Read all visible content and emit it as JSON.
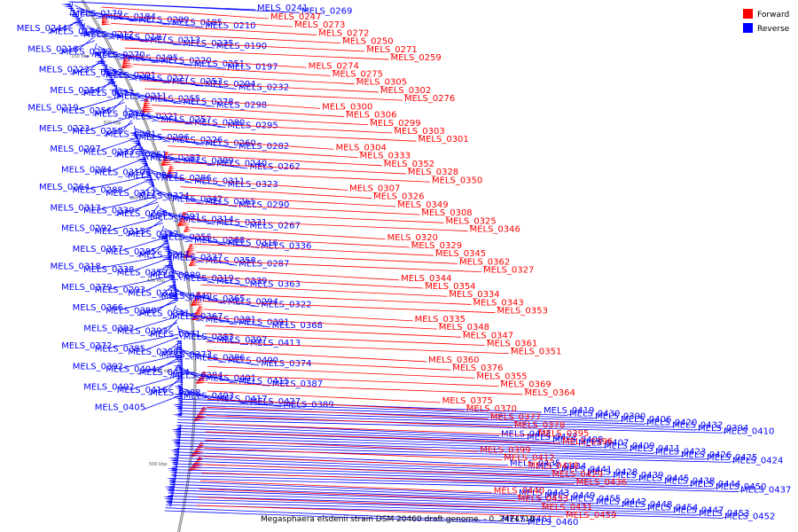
{
  "caption": "Megasphaera elsdenii strain DSM 20460 draft genome. - 0..2474718",
  "legend": [
    {
      "label": "Forward",
      "color": "#ff0000"
    },
    {
      "label": "Reverse",
      "color": "#0000ff"
    }
  ],
  "ticks": [
    "250 kbp",
    "300 kbp",
    "350 kbp",
    "400 kbp",
    "450 kbp",
    "500 kbp"
  ],
  "colors": {
    "forward": "#ff0000",
    "reverse": "#0000ff",
    "backbone": "#888888"
  },
  "reverse_labels": [
    "MELS_0241",
    "MELS_0269",
    "MELS_0179",
    "MELS_0184",
    "MELS_0209",
    "MELS_0185",
    "MELS_0210",
    "MELS_0244",
    "MELS_0186",
    "MELS_0212",
    "MELS_0187",
    "MELS_0213",
    "MELS_0235",
    "MELS_0190",
    "MELS_0218",
    "MELS_0242",
    "MELS_0270",
    "MELS_0195",
    "MELS_0220",
    "MELS_0251",
    "MELS_0197",
    "MELS_0222",
    "MELS_0252",
    "MELS_0201",
    "MELS_0227",
    "MELS_0253",
    "MELS_0204",
    "MELS_0232",
    "MELS_0254",
    "MELS_0277",
    "MELS_0211",
    "MELS_0255",
    "MELS_0278",
    "MELS_0298",
    "MELS_0219",
    "MELS_0256",
    "MELS_0279",
    "MELS_0221",
    "MELS_0257",
    "MELS_0280",
    "MELS_0295",
    "MELS_0223",
    "MELS_0258",
    "MELS_0281",
    "MELS_0296",
    "MELS_0226",
    "MELS_0260",
    "MELS_0282",
    "MELS_0297",
    "MELS_0233",
    "MELS_0261",
    "MELS_0283",
    "MELS_0309",
    "MELS_0240",
    "MELS_0262",
    "MELS_0284",
    "MELS_0310",
    "MELS_0263",
    "MELS_0286",
    "MELS_0311",
    "MELS_0323",
    "MELS_0264",
    "MELS_0288",
    "MELS_0312",
    "MELS_0324",
    "MELS_0342",
    "MELS_0265",
    "MELS_0290",
    "MELS_0313",
    "MELS_0330",
    "MELS_0266",
    "MELS_0291",
    "MELS_0314",
    "MELS_0331",
    "MELS_0267",
    "MELS_0292",
    "MELS_0315",
    "MELS_0332",
    "MELS_0356",
    "MELS_0268",
    "MELS_0316",
    "MELS_0336",
    "MELS_0357",
    "MELS_0285",
    "MELS_0317",
    "MELS_0337",
    "MELS_0358",
    "MELS_0287",
    "MELS_0318",
    "MELS_0338",
    "MELS_0359",
    "MELS_0289",
    "MELS_0319",
    "MELS_0339",
    "MELS_0363",
    "MELS_0379",
    "MELS_0293",
    "MELS_0321",
    "MELS_0340",
    "MELS_0365",
    "MELS_0294",
    "MELS_0322",
    "MELS_0366",
    "MELS_0380",
    "MELS_0341",
    "MELS_0367",
    "MELS_0381",
    "MELS_0391",
    "MELS_0368",
    "MELS_0382",
    "MELS_0393",
    "MELS_0371",
    "MELS_0383",
    "MELS_0397",
    "MELS_0413",
    "MELS_0372",
    "MELS_0385",
    "MELS_0398",
    "MELS_0373",
    "MELS_0386",
    "MELS_0400",
    "MELS_0374",
    "MELS_0392",
    "MELS_0404",
    "MELS_0414",
    "MELS_0384",
    "MELS_0401",
    "MELS_0415",
    "MELS_0387",
    "MELS_0402",
    "MELS_0416",
    "MELS_0388",
    "MELS_0403",
    "MELS_0417",
    "MELS_0427",
    "MELS_0389",
    "MELS_0405",
    "MELS_0419",
    "MELS_0430",
    "MELS_0390",
    "MELS_0406",
    "MELS_0420",
    "MELS_0432",
    "MELS_0394",
    "MELS_0410",
    "MELS_0421",
    "MELS_0422",
    "MELS_0408",
    "MELS_0407",
    "MELS_0409",
    "MELS_0411",
    "MELS_0423",
    "MELS_0426",
    "MELS_0425",
    "MELS_0424",
    "MELS_0435",
    "MELS_0434",
    "MELS_0441",
    "MELS_0428",
    "MELS_0439",
    "MELS_0445",
    "MELS_0438",
    "MELS_0444",
    "MELS_0450",
    "MELS_0437",
    "MELS_0443",
    "MELS_0449",
    "MELS_0455",
    "MELS_0442",
    "MELS_0448",
    "MELS_0454",
    "MELS_0447",
    "MELS_0453",
    "MELS_0452",
    "MELS_0461",
    "MELS_0460"
  ],
  "forward_labels": [
    "MELS_0247",
    "MELS_0273",
    "MELS_0272",
    "MELS_0250",
    "MELS_0271",
    "MELS_0259",
    "MELS_0274",
    "MELS_0275",
    "MELS_0305",
    "MELS_0302",
    "MELS_0276",
    "MELS_0300",
    "MELS_0306",
    "MELS_0299",
    "MELS_0303",
    "MELS_0301",
    "MELS_0304",
    "MELS_0333",
    "MELS_0352",
    "MELS_0328",
    "MELS_0350",
    "MELS_0307",
    "MELS_0326",
    "MELS_0349",
    "MELS_0308",
    "MELS_0325",
    "MELS_0346",
    "MELS_0320",
    "MELS_0329",
    "MELS_0345",
    "MELS_0362",
    "MELS_0327",
    "MELS_0344",
    "MELS_0354",
    "MELS_0334",
    "MELS_0343",
    "MELS_0353",
    "MELS_0335",
    "MELS_0348",
    "MELS_0347",
    "MELS_0361",
    "MELS_0351",
    "MELS_0360",
    "MELS_0376",
    "MELS_0355",
    "MELS_0369",
    "MELS_0364",
    "MELS_0375",
    "MELS_0370",
    "MELS_0377",
    "MELS_0378",
    "MELS_0395",
    "MELS_0396",
    "MELS_0399",
    "MELS_0412",
    "MELS_0418",
    "MELS_0429",
    "MELS_0436",
    "MELS_0440",
    "MELS_0433",
    "MELS_0431",
    "MELS_0459"
  ]
}
